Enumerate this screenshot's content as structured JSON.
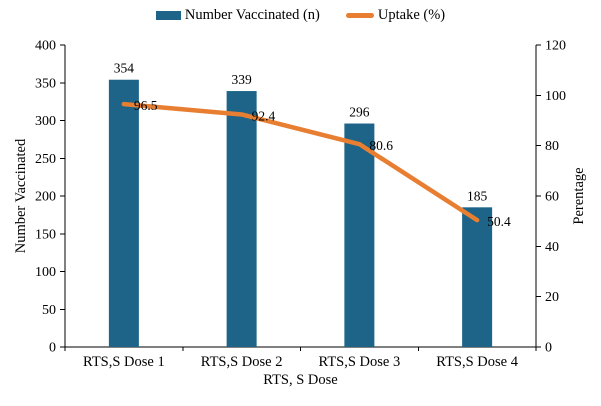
{
  "chart_data": {
    "type": "bar+line combo",
    "categories": [
      "RTS,S Dose 1",
      "RTS,S Dose 2",
      "RTS,S Dose 3",
      "RTS,S Dose 4"
    ],
    "series": [
      {
        "name": "Number Vaccinated (n)",
        "type": "bar",
        "axis": "left",
        "values": [
          354,
          339,
          296,
          185
        ],
        "color": "#1D6488"
      },
      {
        "name": "Uptake (%)",
        "type": "line",
        "axis": "right",
        "values": [
          96.5,
          92.4,
          80.6,
          50.4
        ],
        "color": "#E87E31"
      }
    ],
    "title": "",
    "xlabel": "RTS, S Dose",
    "ylabel_left": "Number Vaccinated",
    "ylabel_right": "Perentage",
    "y_left": {
      "min": 0,
      "max": 400,
      "ticks": [
        0,
        50,
        100,
        150,
        200,
        250,
        300,
        350,
        400
      ]
    },
    "y_right": {
      "min": 0,
      "max": 120,
      "ticks": [
        0,
        20,
        40,
        60,
        80,
        100,
        120
      ]
    },
    "grid": false,
    "legend_position": "top",
    "axis_color": "#000000",
    "text_color": "#000000",
    "background": "#ffffff"
  }
}
